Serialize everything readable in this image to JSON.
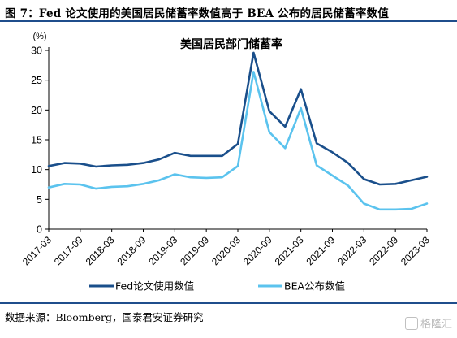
{
  "figure": {
    "title": "图 7：Fed 论文使用的美国居民储蓄率数值高于 BEA 公布的居民储蓄率数值",
    "source": "数据来源：Bloomberg，国泰君安证券研究",
    "watermark": "格隆汇"
  },
  "chart_data": {
    "type": "line",
    "title": "美国居民部门储蓄率",
    "unit_label": "(%)",
    "xlabel": "",
    "ylabel": "",
    "ylim": [
      0,
      30
    ],
    "yticks": [
      0,
      5,
      10,
      15,
      20,
      25,
      30
    ],
    "grid": false,
    "legend_position": "bottom",
    "x_ticks": [
      "2017-03",
      "2017-09",
      "2018-03",
      "2018-09",
      "2019-03",
      "2019-09",
      "2020-03",
      "2020-09",
      "2021-03",
      "2021-09",
      "2022-03",
      "2022-09",
      "2023-03"
    ],
    "x": [
      "2017-03",
      "2017-06",
      "2017-09",
      "2017-12",
      "2018-03",
      "2018-06",
      "2018-09",
      "2018-12",
      "2019-03",
      "2019-06",
      "2019-09",
      "2019-12",
      "2020-03",
      "2020-06",
      "2020-09",
      "2020-12",
      "2021-03",
      "2021-06",
      "2021-09",
      "2021-12",
      "2022-03",
      "2022-06",
      "2022-09",
      "2022-12",
      "2023-03"
    ],
    "series": [
      {
        "name": "Fed论文使用数值",
        "color": "#1a4f8b",
        "values": [
          10.6,
          11.1,
          11.0,
          10.5,
          10.7,
          10.8,
          11.1,
          11.7,
          12.8,
          12.3,
          12.3,
          12.3,
          14.3,
          29.6,
          19.8,
          17.2,
          23.5,
          14.4,
          12.9,
          11.1,
          8.4,
          7.5,
          7.6,
          8.2,
          8.8
        ]
      },
      {
        "name": "BEA公布数值",
        "color": "#5bc3ee",
        "values": [
          7.0,
          7.6,
          7.5,
          6.8,
          7.1,
          7.2,
          7.6,
          8.2,
          9.2,
          8.7,
          8.6,
          8.7,
          10.6,
          26.4,
          16.3,
          13.6,
          20.3,
          10.7,
          9.0,
          7.3,
          4.3,
          3.3,
          3.3,
          3.4,
          4.3
        ]
      }
    ]
  }
}
